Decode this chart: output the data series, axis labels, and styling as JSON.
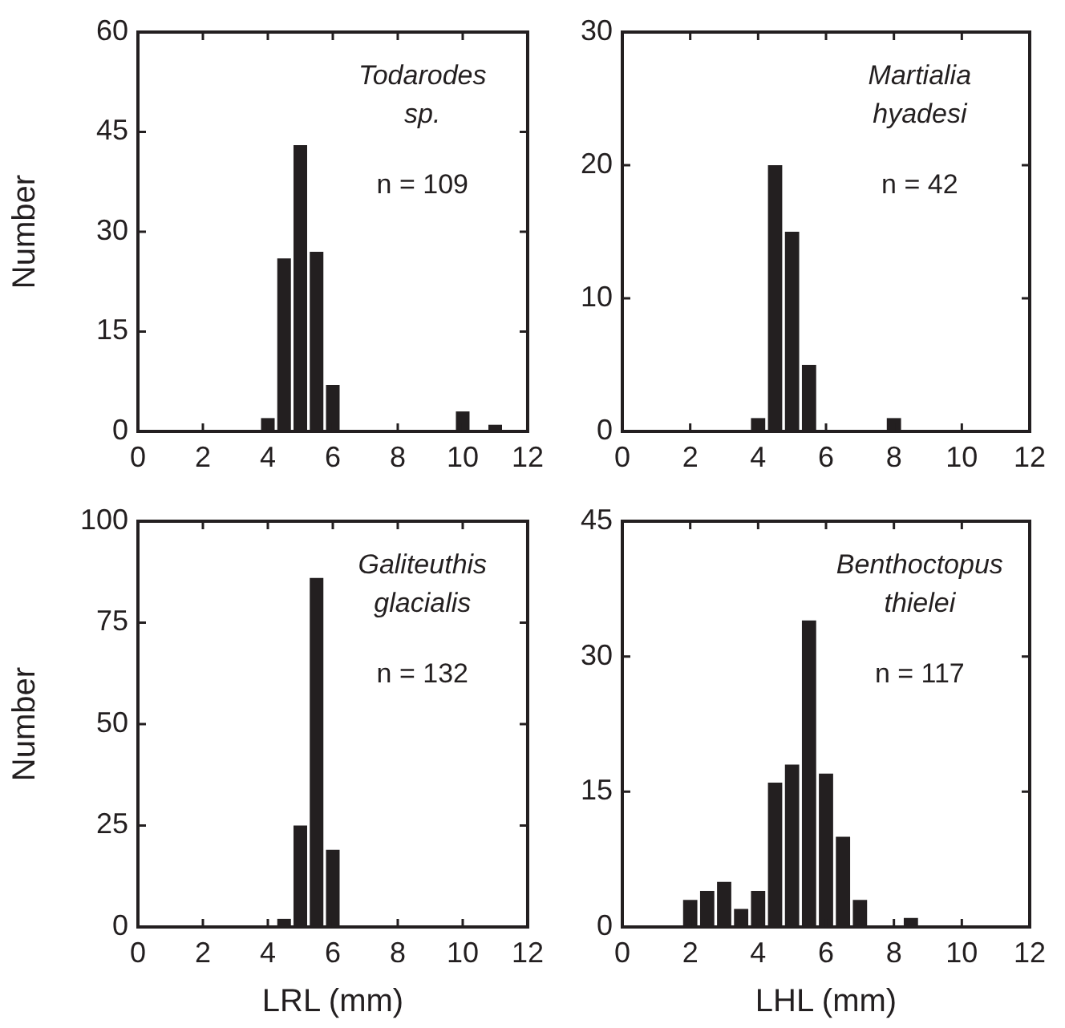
{
  "chart_data": [
    {
      "type": "bar",
      "x": [
        4,
        4.5,
        5,
        5.5,
        6,
        10,
        11
      ],
      "values": [
        2,
        26,
        43,
        27,
        7,
        3,
        1
      ],
      "color": "#231f20",
      "xlim": [
        0,
        12
      ],
      "xticks": [
        0,
        2,
        4,
        6,
        8,
        10,
        12
      ],
      "ylim": [
        0,
        60
      ],
      "yticks": [
        0,
        15,
        30,
        45,
        60
      ],
      "ylabel": "Number",
      "annotations": [
        "Todarodes\nsp.",
        "n = 109"
      ],
      "grid": false,
      "legend": false
    },
    {
      "type": "bar",
      "x": [
        4,
        4.5,
        5,
        5.5,
        8
      ],
      "values": [
        1,
        20,
        15,
        5,
        1
      ],
      "color": "#231f20",
      "xlim": [
        0,
        12
      ],
      "xticks": [
        0,
        2,
        4,
        6,
        8,
        10,
        12
      ],
      "ylim": [
        0,
        30
      ],
      "yticks": [
        0,
        10,
        20,
        30
      ],
      "annotations": [
        "Martialia\nhyadesi",
        "n = 42"
      ],
      "grid": false,
      "legend": false
    },
    {
      "type": "bar",
      "x": [
        4.5,
        5,
        5.5,
        6
      ],
      "values": [
        2,
        25,
        86,
        19
      ],
      "color": "#231f20",
      "xlim": [
        0,
        12
      ],
      "xticks": [
        0,
        2,
        4,
        6,
        8,
        10,
        12
      ],
      "ylim": [
        0,
        100
      ],
      "yticks": [
        0,
        25,
        50,
        75,
        100
      ],
      "ylabel": "Number",
      "xlabel": "LRL (mm)",
      "annotations": [
        "Galiteuthis\nglacialis",
        "n = 132"
      ],
      "grid": false,
      "legend": false
    },
    {
      "type": "bar",
      "x": [
        2,
        2.5,
        3,
        3.5,
        4,
        4.5,
        5,
        5.5,
        6,
        6.5,
        7,
        8.5
      ],
      "values": [
        3,
        4,
        5,
        2,
        4,
        16,
        18,
        34,
        17,
        10,
        3,
        1
      ],
      "color": "#231f20",
      "xlim": [
        0,
        12
      ],
      "xticks": [
        0,
        2,
        4,
        6,
        8,
        10,
        12
      ],
      "ylim": [
        0,
        45
      ],
      "yticks": [
        0,
        15,
        30,
        45
      ],
      "xlabel": "LHL (mm)",
      "annotations": [
        "Benthoctopus\nthielei",
        "n = 117"
      ],
      "grid": false,
      "legend": false
    }
  ]
}
